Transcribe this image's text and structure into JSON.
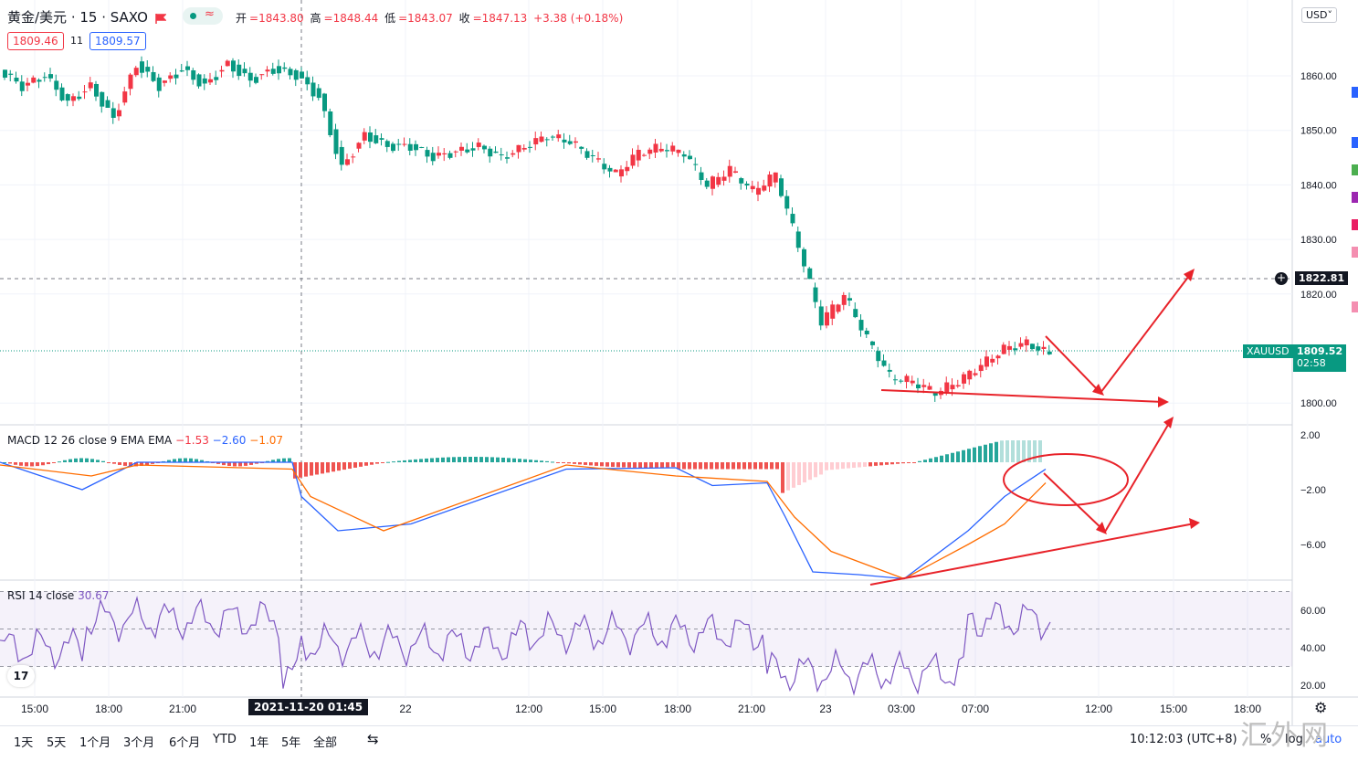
{
  "header": {
    "symbol": "黄金/美元 · 15 · SAXO",
    "open_label": "开",
    "open": "=1843.80",
    "high_label": "高",
    "high": "=1848.44",
    "low_label": "低",
    "low": "=1843.07",
    "close_label": "收",
    "close": "=1847.13",
    "change": "+3.38 (+0.18%)",
    "bid": "1809.46",
    "spread": "11",
    "ask": "1809.57",
    "currency": "USD",
    "currency_arrow": "˅"
  },
  "price_axis": {
    "labels": [
      "1860.00",
      "1850.00",
      "1840.00",
      "1830.00",
      "1820.00",
      "1800.00"
    ],
    "crosshair_price": "1822.81",
    "symbol_tag": "XAUUSD",
    "last_price": "1809.52",
    "countdown": "02:58"
  },
  "macd": {
    "legend_name": "MACD 12 26 close 9 EMA EMA",
    "hist": "−1.53",
    "macd": "−2.60",
    "signal": "−1.07",
    "axis_labels": [
      "2.00",
      "−2.00",
      "−6.00"
    ]
  },
  "rsi": {
    "legend_name": "RSI 14 close",
    "value": "30.67",
    "axis_labels": [
      "60.00",
      "40.00",
      "20.00"
    ]
  },
  "time_axis": {
    "labels": [
      "15:00",
      "18:00",
      "21:00",
      "22",
      "12:00",
      "15:00",
      "18:00",
      "21:00",
      "23",
      "03:00",
      "07:00",
      "12:00",
      "15:00",
      "18:00"
    ],
    "crosshair_time": "2021-11-20  01:45"
  },
  "bottom_bar": {
    "timeframes": [
      "1天",
      "5天",
      "1个月",
      "3个月",
      "6个月",
      "YTD",
      "1年",
      "5年",
      "全部"
    ],
    "clock": "10:12:03 (UTC+8)",
    "percent": "%",
    "log": "log",
    "auto": "auto"
  },
  "logo_text": "17",
  "watermark": "汇外网",
  "colors": {
    "up": "#f23645",
    "down": "#089981",
    "macd_line": "#2962ff",
    "signal_line": "#ff6d00",
    "rsi_line": "#7e57c2",
    "annotation": "#e8232a"
  }
}
